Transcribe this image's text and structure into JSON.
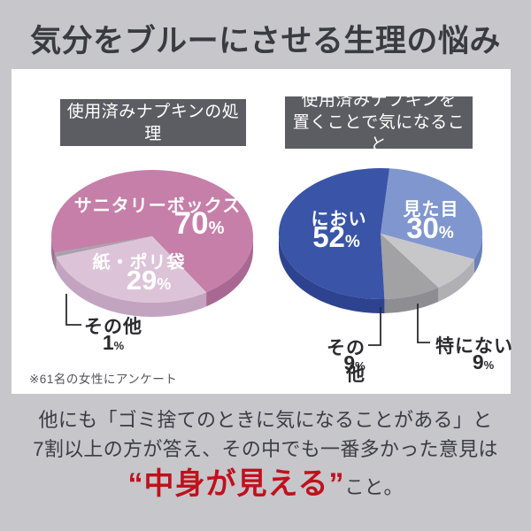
{
  "title": "気分をブルーにさせる生理の悩み",
  "percent_unit": "%",
  "survey_note": "※61名の女性にアンケート",
  "chart_data": [
    {
      "type": "pie",
      "title": "使用済みナプキンの処理",
      "title_lines": [
        "使用済みナプキンの処理"
      ],
      "labels": [
        "サニタリーボックス",
        "紙・ポリ袋",
        "その他"
      ],
      "values": [
        70,
        29,
        1
      ],
      "colors": [
        "#c67fa9",
        "#ddc3d8",
        "#a8a2aa"
      ],
      "side_colors": [
        "#a96892",
        "#c3a4c0",
        "#938d96"
      ],
      "start_deg": 255.6,
      "style": "3d-pie",
      "legend_position": "on-slice"
    },
    {
      "type": "pie",
      "title": "使用済みナプキンを置くことで気になること",
      "title_lines": [
        "使用済みナプキンを",
        "置くことで気になること"
      ],
      "labels": [
        "見た目",
        "特にない",
        "その他",
        "におい"
      ],
      "values": [
        30,
        9,
        9,
        52
      ],
      "colors": [
        "#8096ce",
        "#c7c7c9",
        "#a2a2a4",
        "#3a54a8"
      ],
      "side_colors": [
        "#6b80b8",
        "#b0b0b4",
        "#8e8e92",
        "#2e4390"
      ],
      "start_deg": 5,
      "style": "3d-pie",
      "legend_position": "on-slice"
    }
  ],
  "footer": {
    "line1": "他にも「ゴミ捨てのときに気になることがある」と",
    "line2": "7割以上の方が答え、その中でも一番多かった意見は",
    "highlight": "“中身が見える”",
    "suffix": "こと。"
  }
}
